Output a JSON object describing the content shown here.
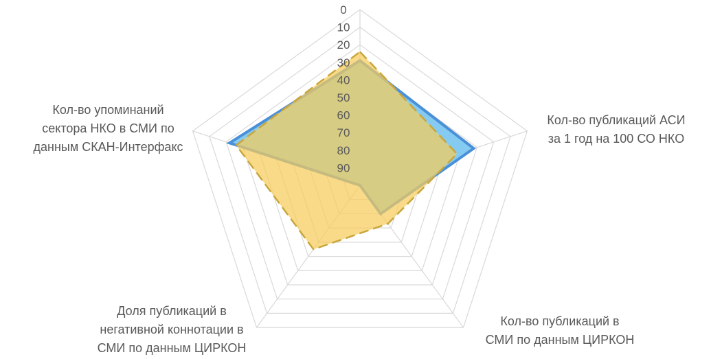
{
  "chart_data": {
    "type": "radar",
    "categories": [
      [
        "",
        ""
      ],
      [
        "Кол-во публикаций АСИ",
        "за 1 год на 100 СО НКО"
      ],
      [
        "Кол-во публикаций в",
        "СМИ по данным ЦИРКОН"
      ],
      [
        "Доля публикаций в",
        "негативной коннотации в",
        "СМИ по данным ЦИРКОН"
      ],
      [
        "Кол-во упоминаний",
        "сектора НКО в СМИ по",
        "данным СКАН-Интерфакс"
      ]
    ],
    "radial_ticks": [
      "0",
      "10",
      "20",
      "30",
      "40",
      "50",
      "60",
      "70",
      "80",
      "90"
    ],
    "axis_direction": "reversed",
    "rmin": 0,
    "rmax": 100,
    "series": [
      {
        "values": [
          29,
          32,
          80,
          100,
          22
        ],
        "color": "#4a90d9",
        "fill": "#7ec8f0",
        "line_style": "solid"
      },
      {
        "values": [
          24,
          42,
          73,
          55,
          26
        ],
        "color": "#c9a63c",
        "fill": "#f6cc5a",
        "line_style": "dashed"
      }
    ],
    "grid": true,
    "legend": "none"
  }
}
